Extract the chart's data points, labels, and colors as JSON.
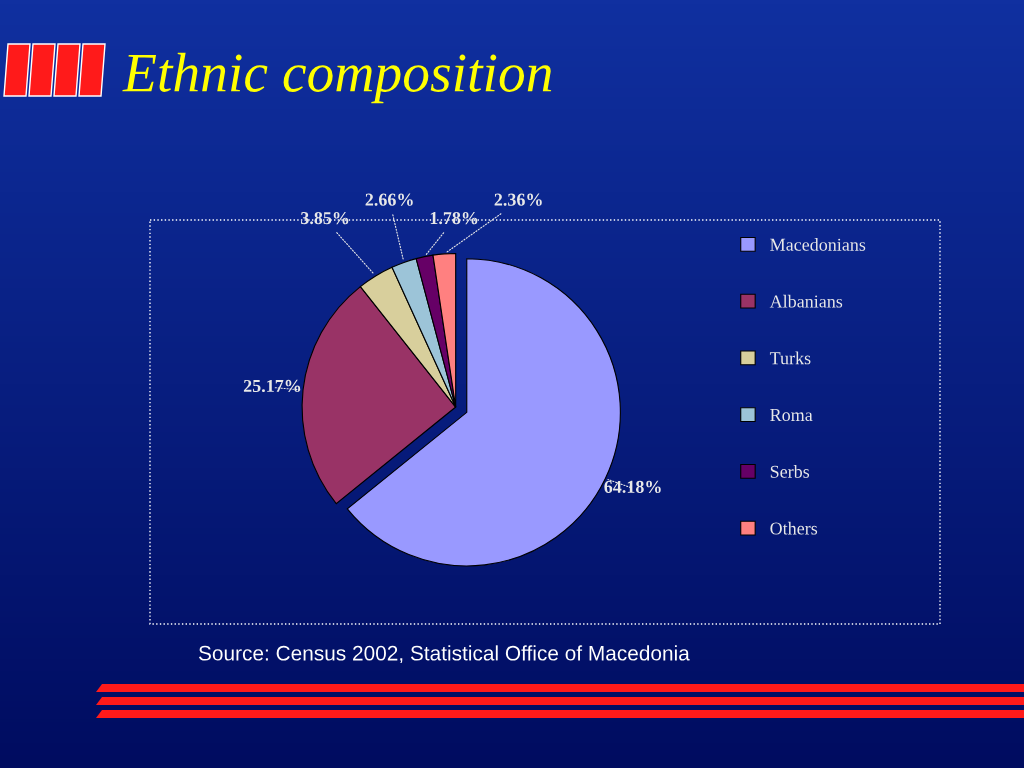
{
  "chart_data": {
    "type": "pie",
    "title": "Ethnic composition",
    "categories": [
      "Macedonians",
      "Albanians",
      "Turks",
      "Roma",
      "Serbs",
      "Others"
    ],
    "values": [
      64.18,
      25.17,
      3.85,
      2.66,
      1.78,
      2.36
    ],
    "colors": [
      "#9999ff",
      "#993366",
      "#d8cf9c",
      "#9cc4d8",
      "#660066",
      "#ff8080"
    ],
    "value_labels": [
      "64.18%",
      "25.17%",
      "3.85%",
      "2.66%",
      "1.78%",
      "2.36%"
    ],
    "legend": "right",
    "annotations": [
      "Source: Census 2002, Statistical Office of Macedonia"
    ]
  }
}
